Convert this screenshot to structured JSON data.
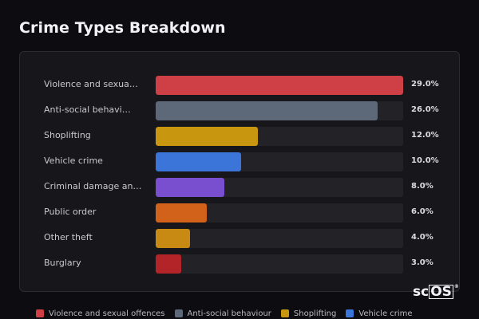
{
  "page": {
    "title": "Crime Types Breakdown"
  },
  "logo": {
    "left": "sc",
    "box": "OS",
    "mark": "®"
  },
  "chart_data": {
    "type": "bar",
    "orientation": "horizontal",
    "categories": [
      "Violence and sexual offences",
      "Anti-social behaviour",
      "Shoplifting",
      "Vehicle crime",
      "Criminal damage and arson",
      "Public order",
      "Other theft",
      "Burglary"
    ],
    "display_labels": [
      "Violence and sexua…",
      "Anti-social behavi…",
      "Shoplifting",
      "Vehicle crime",
      "Criminal damage an…",
      "Public order",
      "Other theft",
      "Burglary"
    ],
    "values": [
      29.0,
      26.0,
      12.0,
      10.0,
      8.0,
      6.0,
      4.0,
      3.0
    ],
    "value_labels": [
      "29.0%",
      "26.0%",
      "12.0%",
      "10.0%",
      "8.0%",
      "6.0%",
      "4.0%",
      "3.0%"
    ],
    "colors": [
      "#cf3f46",
      "#5d6878",
      "#c9960f",
      "#3b75d9",
      "#7a4fcf",
      "#d2621a",
      "#c88a12",
      "#b32428"
    ],
    "xlim": [
      0,
      29
    ],
    "legend": {
      "placement": "bottom",
      "items": [
        {
          "label": "Violence and sexual offences",
          "color": "#cf3f46"
        },
        {
          "label": "Anti-social behaviour",
          "color": "#5d6878"
        },
        {
          "label": "Shoplifting",
          "color": "#c9960f"
        },
        {
          "label": "Vehicle crime",
          "color": "#3b75d9"
        }
      ]
    }
  }
}
